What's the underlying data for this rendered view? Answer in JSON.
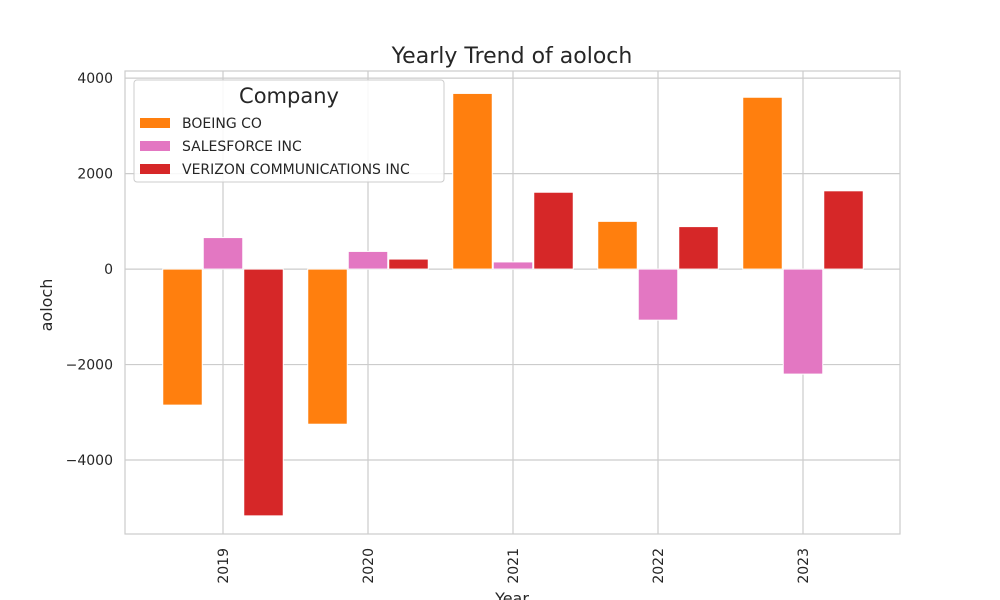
{
  "chart_data": {
    "type": "bar",
    "title": "Yearly Trend of aoloch",
    "xlabel": "Year",
    "ylabel": "aoloch",
    "categories": [
      "2019",
      "2020",
      "2021",
      "2022",
      "2023"
    ],
    "ylim": [
      -5550,
      4150
    ],
    "yticks": [
      -4000,
      -2000,
      0,
      2000,
      4000
    ],
    "ytick_labels": [
      "−4000",
      "−2000",
      "0",
      "2000",
      "4000"
    ],
    "grid": true,
    "legend": {
      "title": "Company",
      "placement": "top-left"
    },
    "series": [
      {
        "name": "BOEING CO",
        "color": "#ff7f0e",
        "values": [
          -2850,
          -3250,
          3680,
          1000,
          3600
        ]
      },
      {
        "name": "SALESFORCE INC",
        "color": "#e377c2",
        "values": [
          660,
          370,
          150,
          -1070,
          -2200
        ]
      },
      {
        "name": "VERIZON COMMUNICATIONS INC",
        "color": "#d62728",
        "values": [
          -5170,
          210,
          1610,
          890,
          1640
        ]
      }
    ]
  }
}
